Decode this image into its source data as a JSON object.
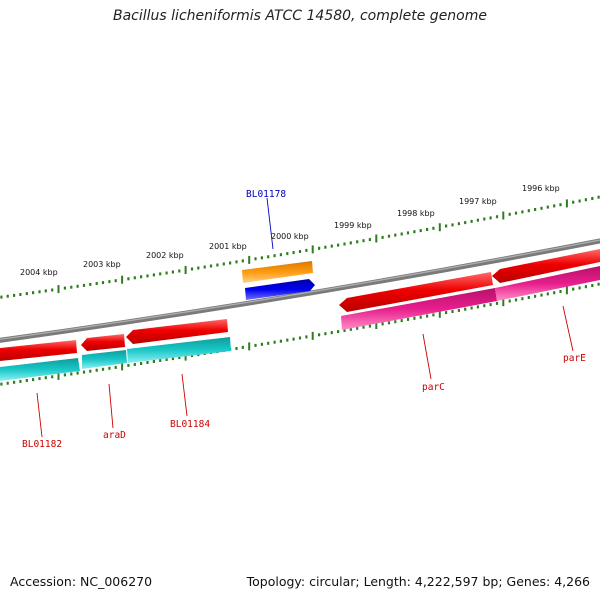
{
  "title": "Bacillus licheniformis ATCC 14580, complete genome",
  "footer": {
    "accession": "Accession: NC_006270",
    "summary": "Topology: circular; Length: 4,222,597 bp; Genes: 4,266"
  },
  "colors": {
    "backbone": "#8a8a8a",
    "tick": "#2e7d1e",
    "gene_label_red": "#cc0000",
    "gene_label_blue": "#0000bb",
    "cds_red": "#ee0000",
    "cds_cyan": "#19c8c8",
    "cds_magenta": "#e81e8c",
    "cds_orange": "#ff9a10",
    "cds_blue": "#0000ee"
  },
  "scale": {
    "unit": "kbp",
    "labels": [
      "2004 kbp",
      "2003 kbp",
      "2002 kbp",
      "2001 kbp",
      "2000 kbp",
      "1999 kbp",
      "1998 kbp",
      "1997 kbp",
      "1996 kbp"
    ]
  },
  "genes": [
    {
      "label": "BL01178",
      "track": "outer-top",
      "color": "cds_orange",
      "strand": "forward"
    },
    {
      "label": "BL01178",
      "track": "outer-bottom",
      "color": "cds_blue",
      "strand": "forward"
    },
    {
      "label": "BL01182",
      "track": "inner",
      "color": "cds_red",
      "strand": "reverse"
    },
    {
      "label": "araD",
      "track": "inner",
      "color": "cds_red",
      "strand": "reverse"
    },
    {
      "label": "BL01184",
      "track": "inner",
      "color": "cds_red",
      "strand": "reverse"
    },
    {
      "label": "parC",
      "track": "inner",
      "color": "cds_red",
      "strand": "reverse"
    },
    {
      "label": "parE",
      "track": "inner",
      "color": "cds_red",
      "strand": "reverse"
    }
  ]
}
